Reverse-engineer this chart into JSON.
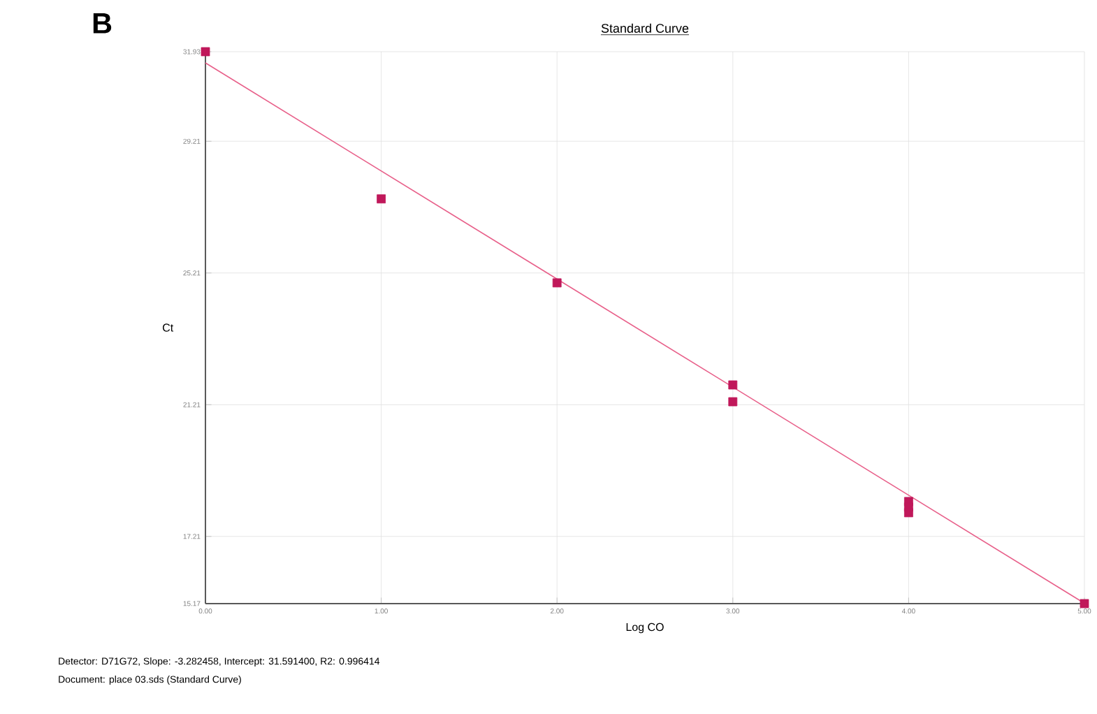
{
  "chart_data": {
    "type": "scatter",
    "title": "Standard Curve",
    "xlabel": "Log CO",
    "ylabel": "Ct",
    "annotations": [
      "B",
      "Detector: D71G72, Slope: -3.282458, Intercept: 31.591400, R2: 0.996414",
      "Document: place 03.sds (Standard Curve)"
    ],
    "series": [
      {
        "color": "#c0185a",
        "marker": "square",
        "x": [
          0,
          1,
          2,
          3,
          3,
          4,
          4,
          4,
          5
        ],
        "values": [
          31.93,
          27.46,
          24.91,
          21.81,
          21.3,
          18.27,
          18.1,
          17.93,
          15.17
        ]
      },
      {
        "type": "line",
        "color": "#e8608a",
        "marker": "none",
        "x": [
          0,
          5
        ],
        "values": [
          31.59,
          15.18
        ]
      }
    ],
    "xlim": [
      0,
      5
    ],
    "ylim": [
      15.17,
      31.93
    ],
    "xticks": [
      {
        "value": 0,
        "label": "0.00"
      },
      {
        "value": 1,
        "label": "1.00"
      },
      {
        "value": 2,
        "label": "2.00"
      },
      {
        "value": 3,
        "label": "3.00"
      },
      {
        "value": 4,
        "label": "4.00"
      },
      {
        "value": 5,
        "label": "5.00"
      }
    ],
    "yticks": [
      {
        "value": 15.17,
        "label": "15.17"
      },
      {
        "value": 17.21,
        "label": "17.21"
      },
      {
        "value": 21.21,
        "label": "21.21"
      },
      {
        "value": 25.21,
        "label": "25.21"
      },
      {
        "value": 29.21,
        "label": "29.21"
      },
      {
        "value": 31.93,
        "label": "31.93"
      }
    ],
    "grid": true
  }
}
